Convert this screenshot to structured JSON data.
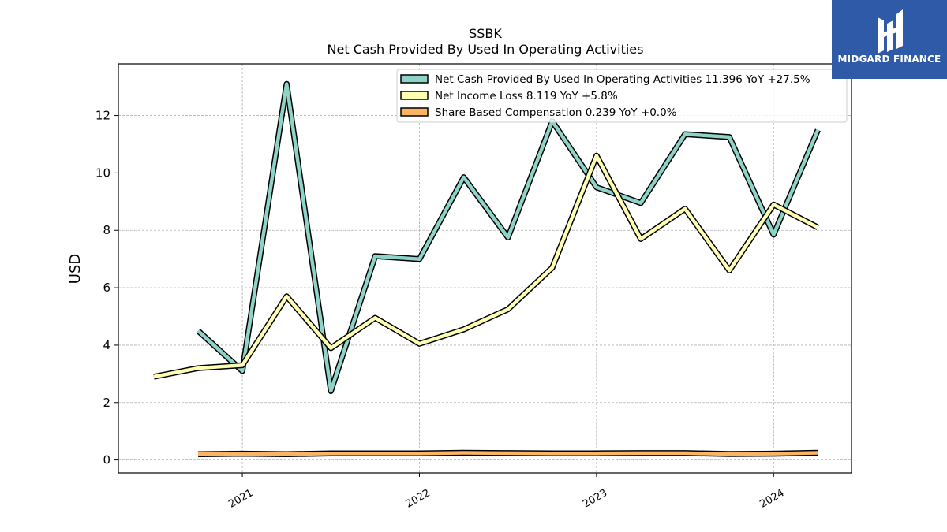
{
  "chart_data": {
    "type": "line",
    "title": "SSBK",
    "subtitle": "Net Cash Provided By Used In Operating Activities",
    "ylabel": "USD",
    "xlabel": "",
    "xlim": [
      2020.3,
      2024.44
    ],
    "ylim": [
      -0.45,
      13.8
    ],
    "grid": true,
    "legend_position": "top-right",
    "x_ticks": [
      2021,
      2022,
      2023,
      2024
    ],
    "x_tick_labels": [
      "2021",
      "2022",
      "2023",
      "2024"
    ],
    "y_ticks": [
      0,
      2,
      4,
      6,
      8,
      10,
      12
    ],
    "y_tick_labels": [
      "0",
      "2",
      "4",
      "6",
      "8",
      "10",
      "12"
    ],
    "series": [
      {
        "name": "Net Cash Provided By Used In Operating Activities",
        "legend_label": "Net Cash Provided By Used In Operating Activities  11.396 YoY +27.5%",
        "color": "#8dd3c7",
        "x": [
          2020.75,
          2021.0,
          2021.25,
          2021.5,
          2021.75,
          2022.0,
          2022.25,
          2022.5,
          2022.75,
          2023.0,
          2023.25,
          2023.5,
          2023.75,
          2024.0,
          2024.25
        ],
        "values": [
          4.5,
          3.1,
          13.1,
          2.4,
          7.1,
          7.0,
          9.85,
          7.75,
          11.8,
          9.5,
          8.95,
          11.35,
          11.25,
          7.85,
          11.5
        ]
      },
      {
        "name": "Net Income Loss",
        "legend_label": "Net Income Loss  8.119 YoY +5.8%",
        "color": "#ffffb3",
        "x": [
          2020.5,
          2020.75,
          2021.0,
          2021.25,
          2021.5,
          2021.75,
          2022.0,
          2022.25,
          2022.5,
          2022.75,
          2023.0,
          2023.25,
          2023.5,
          2023.75,
          2024.0,
          2024.25
        ],
        "values": [
          2.9,
          3.2,
          3.3,
          5.7,
          3.9,
          4.95,
          4.05,
          4.55,
          5.25,
          6.7,
          10.6,
          7.7,
          8.75,
          6.6,
          8.9,
          8.1
        ]
      },
      {
        "name": "Share Based Compensation",
        "legend_label": "Share Based Compensation  0.239 YoY +0.0%",
        "color": "#fdb462",
        "x": [
          2020.75,
          2021.0,
          2021.25,
          2021.5,
          2021.75,
          2022.0,
          2022.25,
          2022.5,
          2022.75,
          2023.0,
          2023.25,
          2023.5,
          2023.75,
          2024.0,
          2024.25
        ],
        "values": [
          0.2,
          0.22,
          0.2,
          0.23,
          0.23,
          0.23,
          0.25,
          0.24,
          0.23,
          0.23,
          0.24,
          0.24,
          0.21,
          0.22,
          0.25
        ]
      }
    ]
  },
  "logo": {
    "text": "MIDGARD FINANCE",
    "color": "#2f5aa8"
  }
}
